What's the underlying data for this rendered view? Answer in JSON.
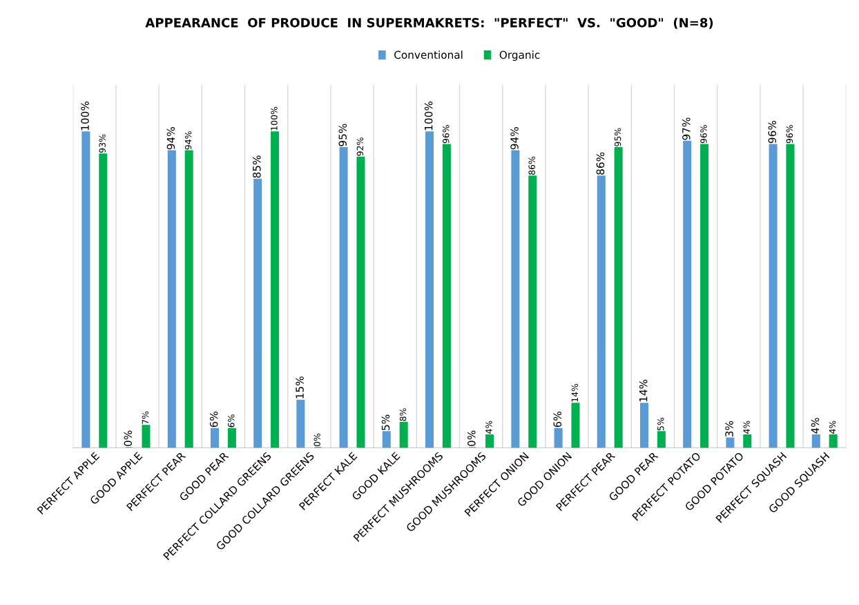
{
  "chart_data": {
    "type": "bar",
    "title": "APPEARANCE  OF PRODUCE  IN SUPERMAKRETS:  \"PERFECT\"  VS.  \"GOOD\"  (N=8)",
    "categories": [
      "PERFECT APPLE",
      "GOOD APPLE",
      "PERFECT PEAR",
      "GOOD PEAR",
      "PERFECT COLLARD GREENS",
      "GOOD COLLARD GREENS",
      "PERFECT KALE",
      "GOOD KALE",
      "PERFECT MUSHROOMS",
      "GOOD MUSHROOMS",
      "PERFECT ONION",
      "GOOD ONION",
      "PERFECT PEAR",
      "GOOD PEAR",
      "PERFECT POTATO",
      "GOOD POTATO",
      "PERFECT SQUASH",
      "GOOD SQUASH"
    ],
    "series": [
      {
        "name": "Conventional",
        "color": "#5b9bd5",
        "values": [
          100,
          0,
          94,
          6,
          85,
          15,
          95,
          5,
          100,
          0,
          94,
          6,
          86,
          14,
          97,
          3,
          96,
          4
        ],
        "value_labels": [
          "100%",
          "0%",
          "94%",
          "6%",
          "85%",
          "15%",
          "95%",
          "5%",
          "100%",
          "0%",
          "94%",
          "6%",
          "86%",
          "14%",
          "97%",
          "3%",
          "96%",
          "4%"
        ]
      },
      {
        "name": "Organic",
        "color": "#00b050",
        "values": [
          93,
          7,
          94,
          6,
          100,
          0,
          92,
          8,
          96,
          4,
          86,
          14,
          95,
          5,
          96,
          4,
          96,
          4
        ],
        "value_labels": [
          "93%",
          "7%",
          "94%",
          "6%",
          "100%",
          "0%",
          "92%",
          "8%",
          "96%",
          "4%",
          "86%",
          "14%",
          "95%",
          "5%",
          "96%",
          "4%",
          "96%",
          "4%"
        ]
      }
    ],
    "grid": "x",
    "legend": "top"
  }
}
